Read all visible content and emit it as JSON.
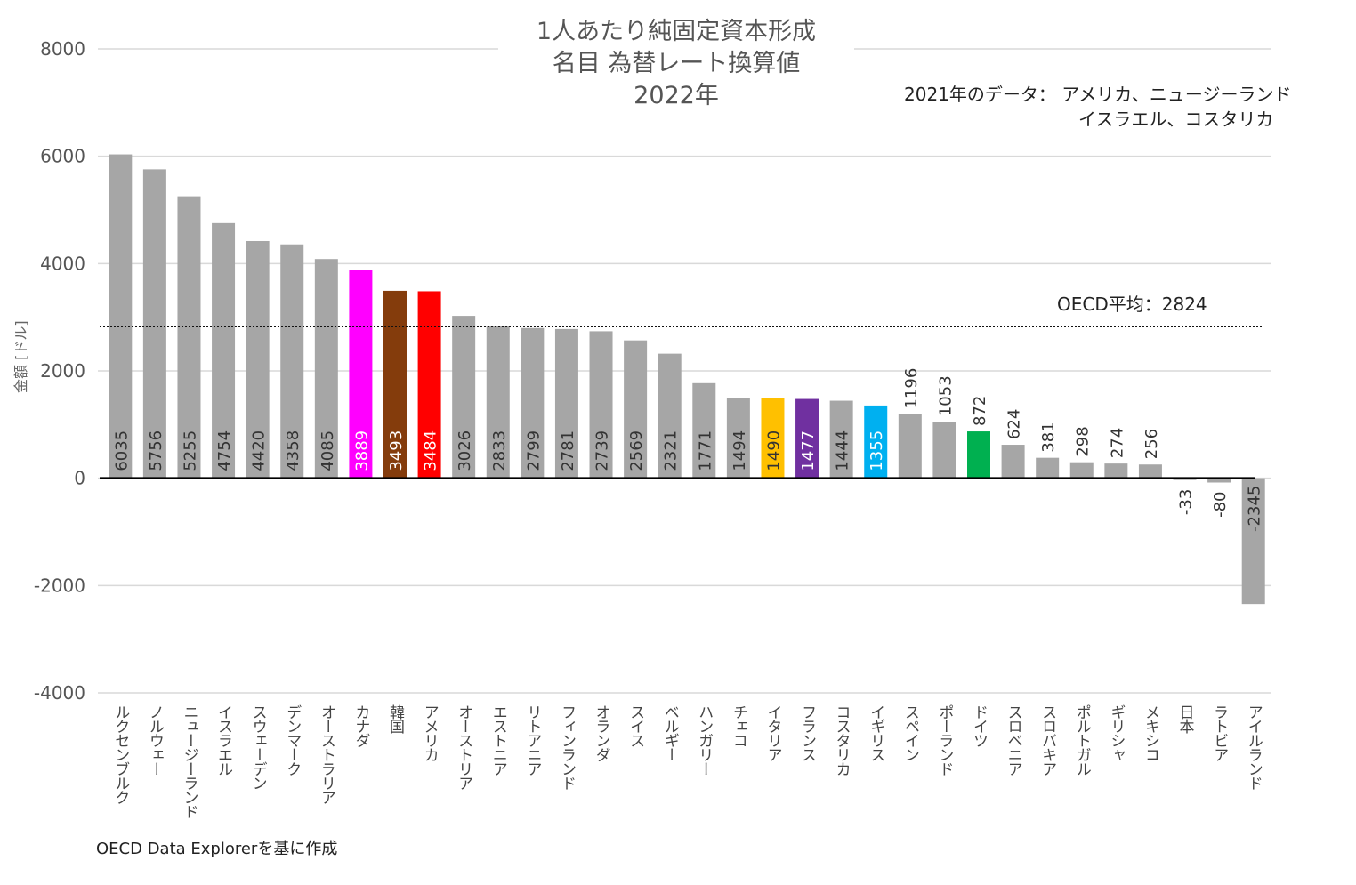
{
  "chart_data": {
    "type": "bar",
    "title_lines": [
      "1人あたり純固定資本形成",
      "名目 為替レート換算値",
      "2022年"
    ],
    "ylabel": "金額 [ドル]",
    "ylim": [
      -4000,
      8000
    ],
    "yticks": [
      8000,
      6000,
      4000,
      2000,
      0,
      -2000,
      -4000
    ],
    "grid": true,
    "categories": [
      "ルクセンブルク",
      "ノルウェー",
      "ニュージーランド",
      "イスラエル",
      "スウェーデン",
      "デンマーク",
      "オーストラリア",
      "カナダ",
      "韓国",
      "アメリカ",
      "オーストリア",
      "エストニア",
      "リトアニア",
      "フィンランド",
      "オランダ",
      "スイス",
      "ベルギー",
      "ハンガリー",
      "チェコ",
      "イタリア",
      "フランス",
      "コスタリカ",
      "イギリス",
      "スペイン",
      "ポーランド",
      "ドイツ",
      "スロベニア",
      "スロバキア",
      "ポルトガル",
      "ギリシャ",
      "メキシコ",
      "日本",
      "ラトビア",
      "アイルランド"
    ],
    "values": [
      6035,
      5756,
      5255,
      4754,
      4420,
      4358,
      4085,
      3889,
      3493,
      3484,
      3026,
      2833,
      2799,
      2781,
      2739,
      2569,
      2321,
      1771,
      1494,
      1490,
      1477,
      1444,
      1355,
      1196,
      1053,
      872,
      624,
      381,
      298,
      274,
      256,
      -33,
      -80,
      -2345
    ],
    "colors": [
      "#a6a6a6",
      "#a6a6a6",
      "#a6a6a6",
      "#a6a6a6",
      "#a6a6a6",
      "#a6a6a6",
      "#a6a6a6",
      "#ff00ff",
      "#843c0c",
      "#ff0000",
      "#a6a6a6",
      "#a6a6a6",
      "#a6a6a6",
      "#a6a6a6",
      "#a6a6a6",
      "#a6a6a6",
      "#a6a6a6",
      "#a6a6a6",
      "#a6a6a6",
      "#ffc000",
      "#7030a0",
      "#a6a6a6",
      "#00b0f0",
      "#a6a6a6",
      "#a6a6a6",
      "#00b050",
      "#a6a6a6",
      "#a6a6a6",
      "#a6a6a6",
      "#a6a6a6",
      "#a6a6a6",
      "#a6a6a6",
      "#a6a6a6",
      "#a6a6a6"
    ],
    "label_colors": [
      "#333333",
      "#333333",
      "#333333",
      "#333333",
      "#333333",
      "#333333",
      "#333333",
      "#ffffff",
      "#ffffff",
      "#ffffff",
      "#333333",
      "#333333",
      "#333333",
      "#333333",
      "#333333",
      "#333333",
      "#333333",
      "#333333",
      "#333333",
      "#333333",
      "#ffffff",
      "#333333",
      "#ffffff",
      "#333333",
      "#333333",
      "#333333",
      "#333333",
      "#333333",
      "#333333",
      "#333333",
      "#333333",
      "#333333",
      "#333333",
      "#333333"
    ],
    "average": {
      "value": 2824,
      "label": "OECD平均：2824"
    },
    "annotation": [
      "2021年のデータ： アメリカ、ニュージーランド",
      "イスラエル、コスタリカ"
    ],
    "source": "OECD Data Explorerを基に作成"
  }
}
